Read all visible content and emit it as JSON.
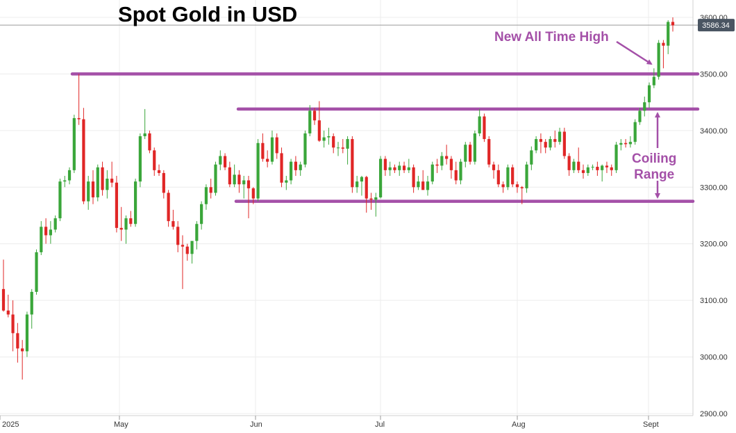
{
  "chart_data": {
    "type": "candlestick",
    "title": "Spot Gold in USD",
    "xlabel": "",
    "ylabel": "",
    "ylim": [
      2895,
      3615
    ],
    "y_ticks": [
      "2900.00",
      "3000.00",
      "3100.00",
      "3200.00",
      "3300.00",
      "3400.00",
      "3500.00",
      "3600.00"
    ],
    "x_ticks": [
      "2025",
      "May",
      "Jun",
      "Jul",
      "Aug",
      "Sept"
    ],
    "last_price": "3586.34",
    "grid": true,
    "colors": {
      "up": "#3aa63a",
      "down": "#e02626",
      "annotation": "#a450a8",
      "price_tag": "#4a5562"
    },
    "levels": [
      {
        "value": 3500,
        "label": ""
      },
      {
        "value": 3438,
        "label": ""
      },
      {
        "value": 3275,
        "label": ""
      }
    ],
    "annotations": [
      {
        "text": "New All Time High"
      },
      {
        "text": "Coiling Range",
        "lines": [
          "Coiling",
          "Range"
        ]
      }
    ],
    "candles": [
      [
        3120,
        3172,
        3080,
        3082
      ],
      [
        3082,
        3110,
        3070,
        3075
      ],
      [
        3075,
        3100,
        3010,
        3042
      ],
      [
        3042,
        3060,
        2990,
        3015
      ],
      [
        3015,
        3030,
        2960,
        3010
      ],
      [
        3010,
        3080,
        3000,
        3075
      ],
      [
        3075,
        3120,
        3050,
        3115
      ],
      [
        3115,
        3190,
        3110,
        3185
      ],
      [
        3185,
        3240,
        3180,
        3230
      ],
      [
        3230,
        3245,
        3200,
        3215
      ],
      [
        3215,
        3240,
        3200,
        3225
      ],
      [
        3225,
        3250,
        3220,
        3245
      ],
      [
        3245,
        3315,
        3240,
        3310
      ],
      [
        3310,
        3320,
        3300,
        3312
      ],
      [
        3312,
        3335,
        3305,
        3330
      ],
      [
        3330,
        3428,
        3325,
        3422
      ],
      [
        3422,
        3500,
        3410,
        3420
      ],
      [
        3420,
        3440,
        3270,
        3275
      ],
      [
        3275,
        3320,
        3260,
        3310
      ],
      [
        3310,
        3330,
        3270,
        3282
      ],
      [
        3282,
        3340,
        3275,
        3335
      ],
      [
        3335,
        3345,
        3285,
        3295
      ],
      [
        3295,
        3330,
        3280,
        3315
      ],
      [
        3315,
        3345,
        3300,
        3308
      ],
      [
        3308,
        3320,
        3220,
        3228
      ],
      [
        3228,
        3265,
        3205,
        3225
      ],
      [
        3225,
        3250,
        3200,
        3245
      ],
      [
        3245,
        3258,
        3230,
        3235
      ],
      [
        3235,
        3315,
        3230,
        3310
      ],
      [
        3310,
        3395,
        3300,
        3390
      ],
      [
        3390,
        3438,
        3385,
        3395
      ],
      [
        3395,
        3400,
        3360,
        3365
      ],
      [
        3365,
        3370,
        3320,
        3330
      ],
      [
        3330,
        3340,
        3320,
        3325
      ],
      [
        3325,
        3330,
        3280,
        3290
      ],
      [
        3290,
        3295,
        3230,
        3240
      ],
      [
        3240,
        3260,
        3225,
        3230
      ],
      [
        3230,
        3240,
        3185,
        3198
      ],
      [
        3198,
        3215,
        3120,
        3195
      ],
      [
        3195,
        3200,
        3170,
        3182
      ],
      [
        3182,
        3200,
        3165,
        3205
      ],
      [
        3205,
        3240,
        3190,
        3235
      ],
      [
        3235,
        3275,
        3225,
        3270
      ],
      [
        3270,
        3305,
        3260,
        3300
      ],
      [
        3300,
        3315,
        3280,
        3290
      ],
      [
        3290,
        3345,
        3285,
        3340
      ],
      [
        3340,
        3365,
        3330,
        3355
      ],
      [
        3355,
        3360,
        3330,
        3335
      ],
      [
        3335,
        3345,
        3300,
        3305
      ],
      [
        3305,
        3340,
        3300,
        3322
      ],
      [
        3322,
        3330,
        3290,
        3305
      ],
      [
        3305,
        3320,
        3280,
        3312
      ],
      [
        3312,
        3320,
        3245,
        3298
      ],
      [
        3298,
        3300,
        3270,
        3280
      ],
      [
        3280,
        3385,
        3275,
        3378
      ],
      [
        3378,
        3395,
        3345,
        3350
      ],
      [
        3350,
        3365,
        3335,
        3345
      ],
      [
        3345,
        3400,
        3340,
        3388
      ],
      [
        3388,
        3395,
        3350,
        3360
      ],
      [
        3360,
        3370,
        3300,
        3308
      ],
      [
        3308,
        3320,
        3295,
        3312
      ],
      [
        3312,
        3350,
        3305,
        3345
      ],
      [
        3345,
        3355,
        3320,
        3330
      ],
      [
        3330,
        3345,
        3320,
        3340
      ],
      [
        3340,
        3400,
        3335,
        3395
      ],
      [
        3395,
        3445,
        3390,
        3435
      ],
      [
        3435,
        3440,
        3410,
        3418
      ],
      [
        3418,
        3452,
        3380,
        3382
      ],
      [
        3382,
        3400,
        3370,
        3388
      ],
      [
        3388,
        3405,
        3375,
        3390
      ],
      [
        3390,
        3395,
        3360,
        3370
      ],
      [
        3370,
        3380,
        3355,
        3370
      ],
      [
        3370,
        3385,
        3360,
        3368
      ],
      [
        3368,
        3390,
        3340,
        3385
      ],
      [
        3385,
        3390,
        3290,
        3300
      ],
      [
        3300,
        3320,
        3290,
        3310
      ],
      [
        3310,
        3320,
        3285,
        3318
      ],
      [
        3318,
        3320,
        3255,
        3280
      ],
      [
        3280,
        3290,
        3260,
        3278
      ],
      [
        3278,
        3290,
        3248,
        3282
      ],
      [
        3282,
        3355,
        3280,
        3350
      ],
      [
        3350,
        3355,
        3320,
        3330
      ],
      [
        3330,
        3345,
        3320,
        3335
      ],
      [
        3335,
        3340,
        3325,
        3330
      ],
      [
        3330,
        3345,
        3320,
        3338
      ],
      [
        3338,
        3345,
        3325,
        3330
      ],
      [
        3330,
        3350,
        3325,
        3335
      ],
      [
        3335,
        3340,
        3290,
        3300
      ],
      [
        3300,
        3320,
        3295,
        3310
      ],
      [
        3310,
        3330,
        3300,
        3295
      ],
      [
        3295,
        3320,
        3285,
        3310
      ],
      [
        3310,
        3345,
        3305,
        3340
      ],
      [
        3340,
        3350,
        3325,
        3338
      ],
      [
        3338,
        3362,
        3330,
        3355
      ],
      [
        3355,
        3375,
        3340,
        3350
      ],
      [
        3350,
        3355,
        3315,
        3330
      ],
      [
        3330,
        3345,
        3305,
        3312
      ],
      [
        3312,
        3350,
        3305,
        3345
      ],
      [
        3345,
        3380,
        3335,
        3375
      ],
      [
        3375,
        3380,
        3340,
        3345
      ],
      [
        3345,
        3400,
        3340,
        3395
      ],
      [
        3395,
        3438,
        3390,
        3425
      ],
      [
        3425,
        3430,
        3380,
        3385
      ],
      [
        3385,
        3390,
        3335,
        3340
      ],
      [
        3340,
        3345,
        3315,
        3330
      ],
      [
        3330,
        3340,
        3300,
        3305
      ],
      [
        3305,
        3310,
        3290,
        3300
      ],
      [
        3300,
        3340,
        3295,
        3335
      ],
      [
        3335,
        3340,
        3300,
        3305
      ],
      [
        3305,
        3310,
        3290,
        3300
      ],
      [
        3300,
        3302,
        3270,
        3298
      ],
      [
        3298,
        3345,
        3290,
        3340
      ],
      [
        3340,
        3372,
        3330,
        3365
      ],
      [
        3365,
        3390,
        3360,
        3385
      ],
      [
        3385,
        3395,
        3360,
        3380
      ],
      [
        3380,
        3385,
        3360,
        3370
      ],
      [
        3370,
        3390,
        3365,
        3385
      ],
      [
        3385,
        3400,
        3370,
        3380
      ],
      [
        3380,
        3405,
        3375,
        3398
      ],
      [
        3398,
        3405,
        3350,
        3355
      ],
      [
        3355,
        3360,
        3320,
        3330
      ],
      [
        3330,
        3350,
        3325,
        3345
      ],
      [
        3345,
        3370,
        3325,
        3330
      ],
      [
        3330,
        3340,
        3315,
        3325
      ],
      [
        3325,
        3340,
        3320,
        3335
      ],
      [
        3335,
        3340,
        3330,
        3336
      ],
      [
        3336,
        3345,
        3320,
        3330
      ],
      [
        3330,
        3340,
        3310,
        3338
      ],
      [
        3338,
        3345,
        3325,
        3335
      ],
      [
        3335,
        3340,
        3320,
        3330
      ],
      [
        3330,
        3380,
        3325,
        3375
      ],
      [
        3375,
        3385,
        3365,
        3378
      ],
      [
        3378,
        3385,
        3370,
        3376
      ],
      [
        3376,
        3390,
        3370,
        3380
      ],
      [
        3380,
        3420,
        3375,
        3415
      ],
      [
        3415,
        3440,
        3410,
        3435
      ],
      [
        3435,
        3460,
        3425,
        3450
      ],
      [
        3450,
        3485,
        3440,
        3480
      ],
      [
        3480,
        3510,
        3475,
        3495
      ],
      [
        3495,
        3560,
        3490,
        3555
      ],
      [
        3555,
        3560,
        3510,
        3550
      ],
      [
        3550,
        3595,
        3535,
        3592
      ],
      [
        3592,
        3600,
        3575,
        3586
      ]
    ]
  }
}
